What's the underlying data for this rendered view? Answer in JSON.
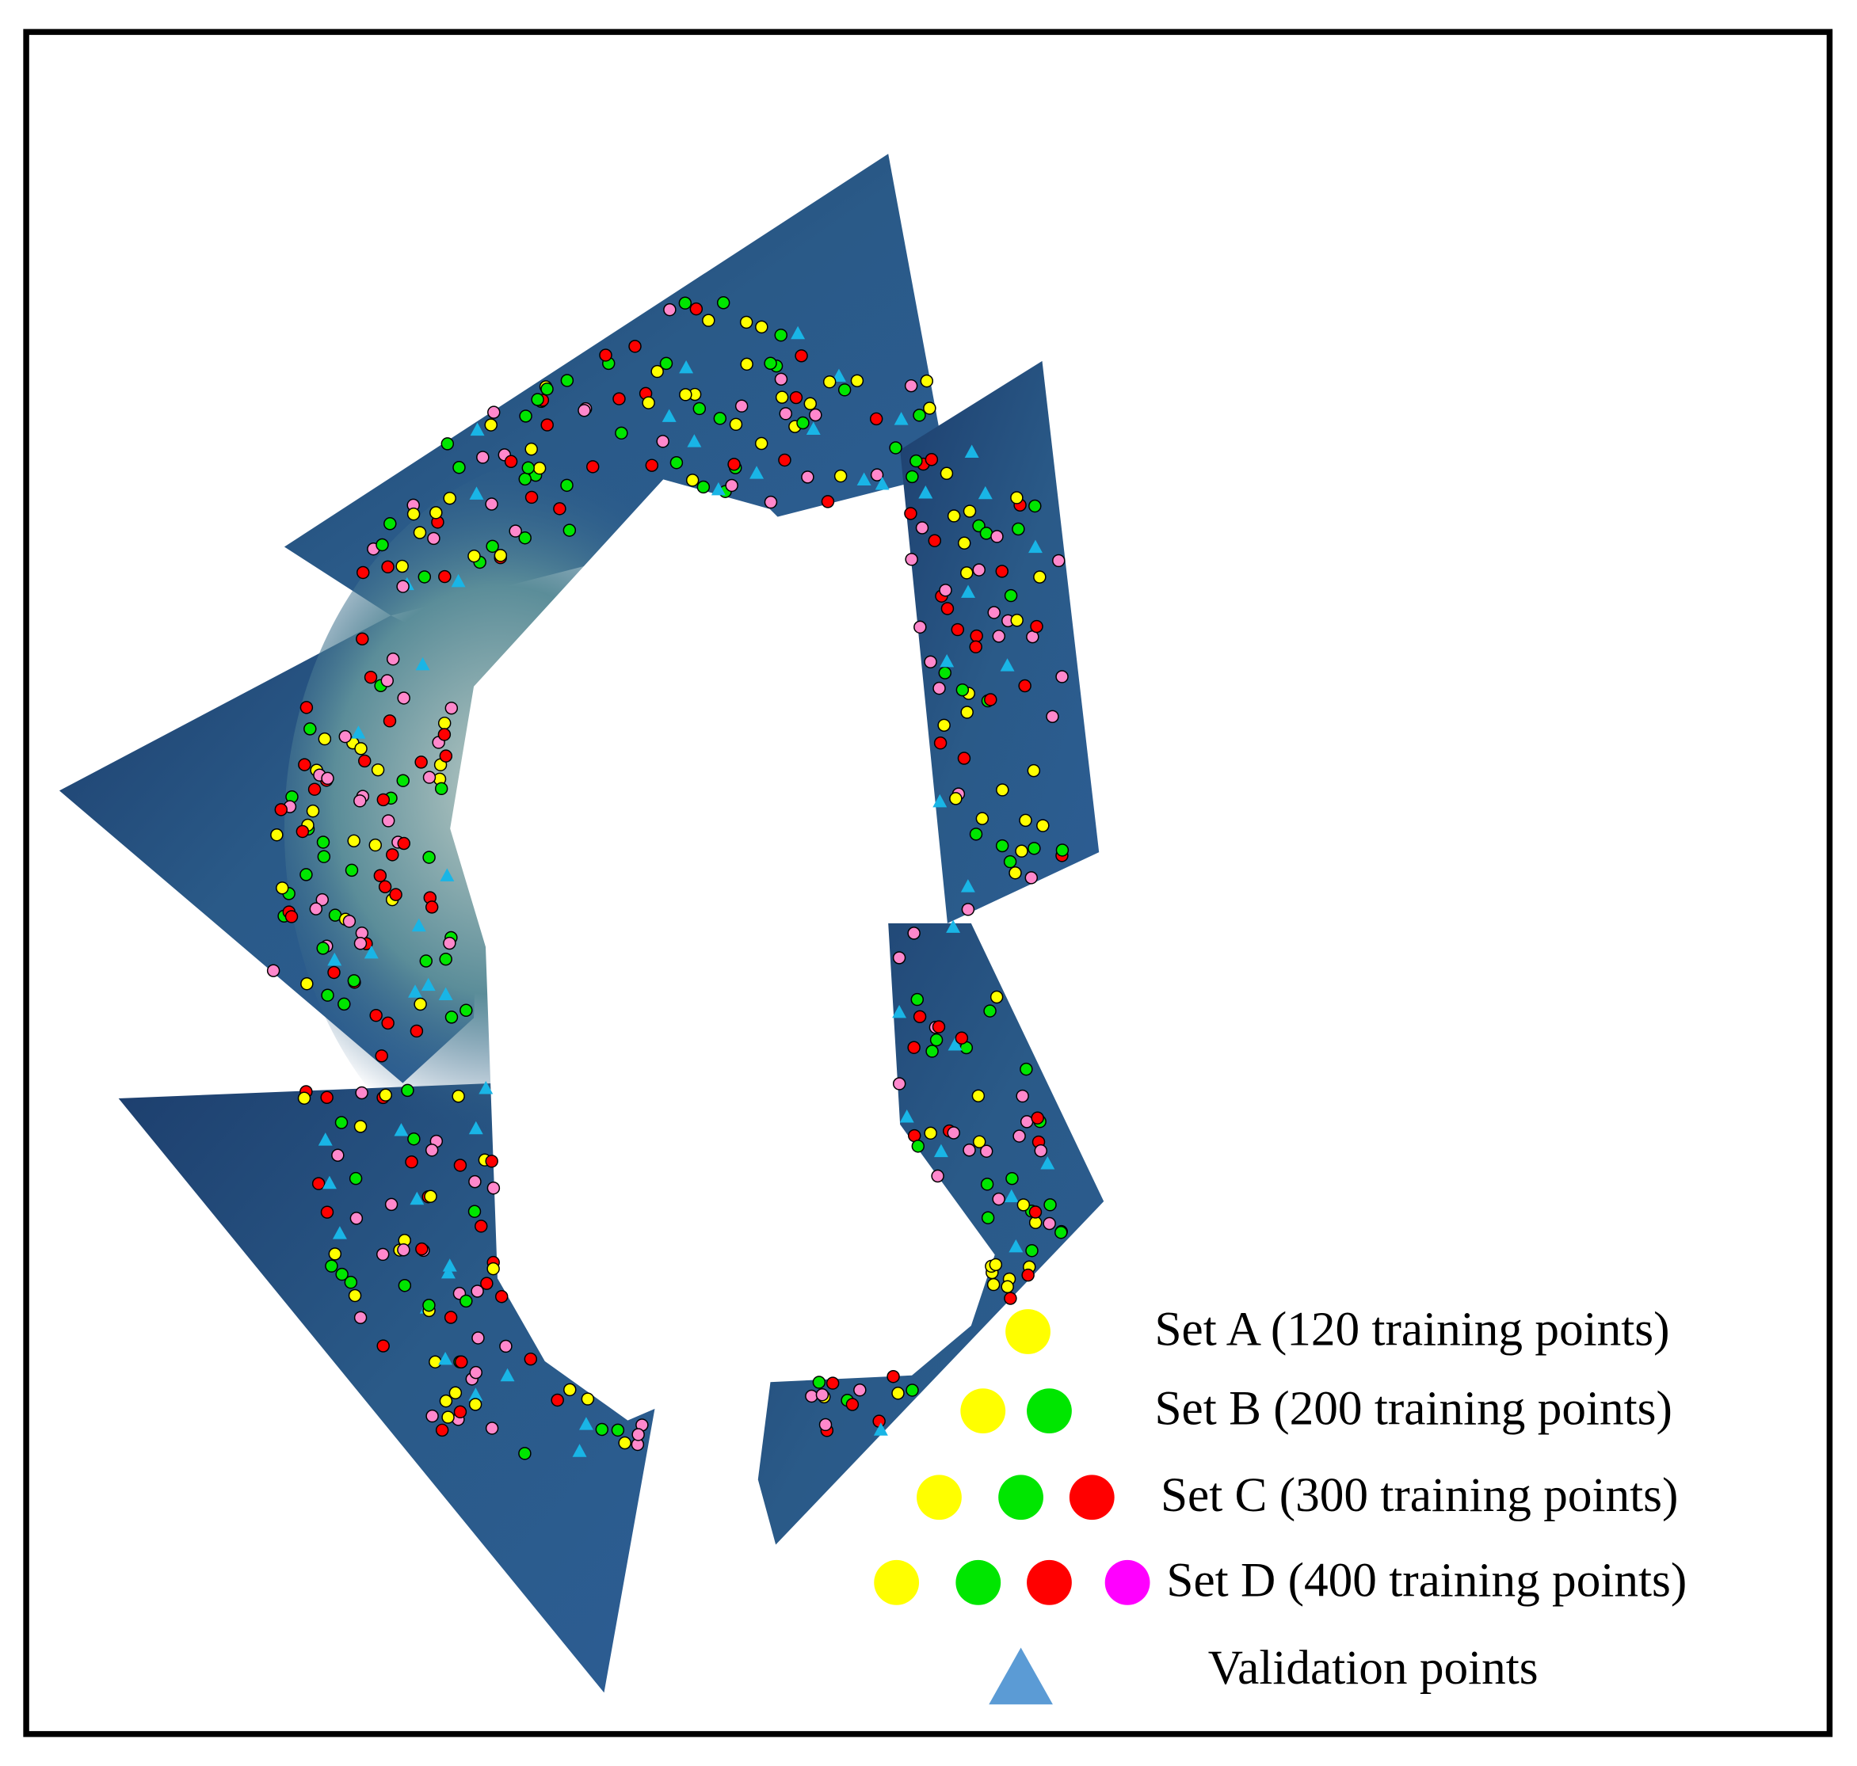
{
  "legend": [
    {
      "label": "Set A (120 training points)",
      "colors": [
        "#ffff00"
      ]
    },
    {
      "label": "Set B (200 training points)",
      "colors": [
        "#ffff00",
        "#00e600"
      ]
    },
    {
      "label": "Set C (300 training points)",
      "colors": [
        "#ffff00",
        "#00e600",
        "#ff0000"
      ]
    },
    {
      "label": "Set D (400 training points)",
      "colors": [
        "#ffff00",
        "#00e600",
        "#ff0000",
        "#ff00ff"
      ]
    }
  ],
  "validation": {
    "label": "Validation points",
    "color": "#5b9bd5"
  }
}
